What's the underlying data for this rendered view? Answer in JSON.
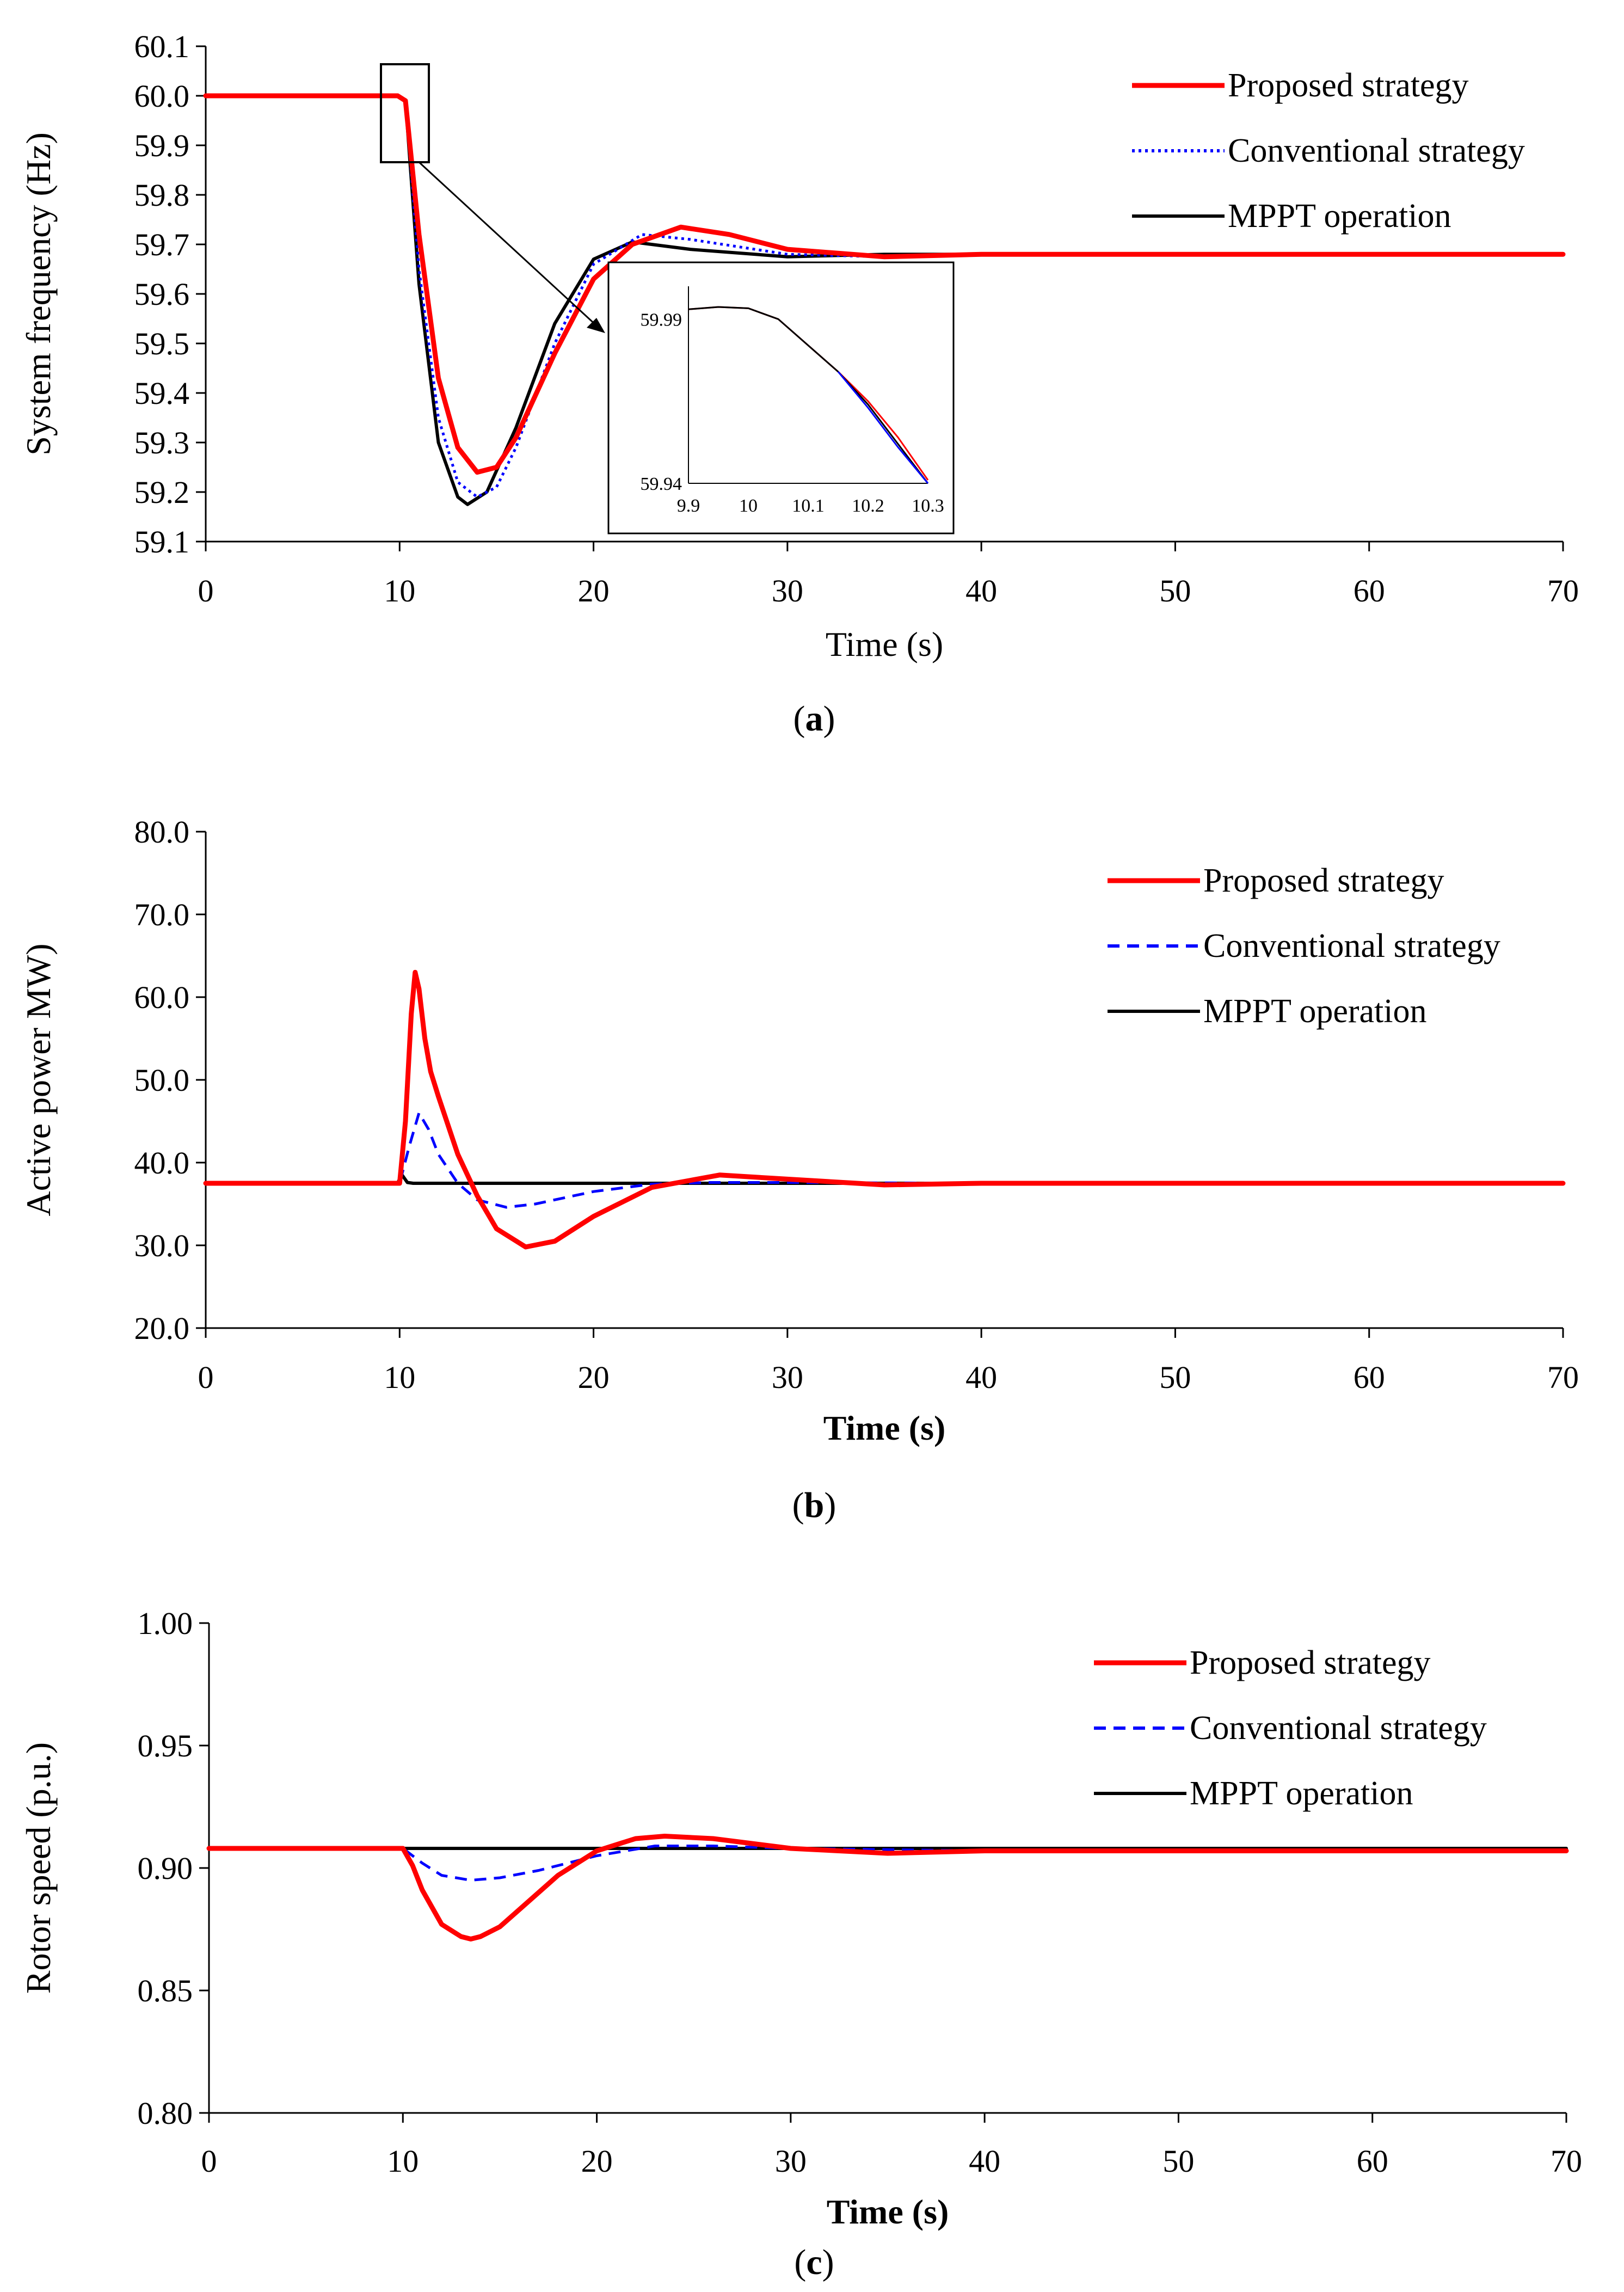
{
  "chart_data": [
    {
      "id": "a",
      "type": "line",
      "panel_label": "(a)",
      "panel_letter": "a",
      "xlabel": "Time (s)",
      "ylabel": "System frequency (Hz)",
      "xlim": [
        0,
        70
      ],
      "ylim": [
        59.1,
        60.1
      ],
      "xticks": [
        "0",
        "10",
        "20",
        "30",
        "40",
        "50",
        "60",
        "70"
      ],
      "yticks": [
        "59.1",
        "59.2",
        "59.3",
        "59.4",
        "59.5",
        "59.6",
        "59.7",
        "59.8",
        "59.9",
        "60.0",
        "60.1"
      ],
      "legend_position": "top-right",
      "series": [
        {
          "name": "Proposed strategy",
          "color": "#ff0000",
          "style": "solid",
          "x": [
            0,
            9.9,
            10.3,
            11,
            12,
            13,
            14,
            15,
            16,
            18,
            20,
            22,
            24.5,
            27,
            30,
            35,
            40,
            70
          ],
          "y": [
            60.0,
            60.0,
            59.99,
            59.72,
            59.43,
            59.29,
            59.24,
            59.25,
            59.31,
            59.48,
            59.63,
            59.7,
            59.735,
            59.72,
            59.69,
            59.675,
            59.68,
            59.68
          ]
        },
        {
          "name": "Conventional strategy",
          "color": "#0000ff",
          "style": "dotted",
          "x": [
            0,
            9.9,
            10.3,
            11,
            12,
            13,
            14,
            15,
            16,
            18,
            20,
            22.5,
            25,
            30,
            35,
            40,
            70
          ],
          "y": [
            60.0,
            60.0,
            59.99,
            59.65,
            59.35,
            59.22,
            59.19,
            59.21,
            59.29,
            59.5,
            59.66,
            59.72,
            59.71,
            59.68,
            59.675,
            59.68,
            59.68
          ]
        },
        {
          "name": "MPPT operation",
          "color": "#000000",
          "style": "solid",
          "x": [
            0,
            9.9,
            10.3,
            11,
            12,
            13,
            13.5,
            14.5,
            16,
            18,
            20,
            22,
            25,
            30,
            35,
            40,
            70
          ],
          "y": [
            60.0,
            60.0,
            59.99,
            59.62,
            59.3,
            59.19,
            59.175,
            59.2,
            59.33,
            59.54,
            59.67,
            59.705,
            59.69,
            59.675,
            59.68,
            59.68,
            59.68
          ]
        }
      ],
      "inset": {
        "xlim": [
          9.9,
          10.3
        ],
        "ylim": [
          59.94,
          60.0
        ],
        "xticks": [
          "9.9",
          "10",
          "10.1",
          "10.2",
          "10.3"
        ],
        "yticks": [
          "59.94",
          "59.99"
        ],
        "series": [
          {
            "name": "Proposed strategy",
            "color": "#ff0000",
            "x": [
              9.9,
              9.95,
              10.0,
              10.05,
              10.1,
              10.15,
              10.2,
              10.25,
              10.3
            ],
            "y": [
              59.993,
              59.9937,
              59.9933,
              59.99,
              59.982,
              59.974,
              59.965,
              59.954,
              59.941
            ]
          },
          {
            "name": "MPPT operation",
            "color": "#000000",
            "x": [
              9.9,
              9.95,
              10.0,
              10.05,
              10.1,
              10.15,
              10.2,
              10.25,
              10.3
            ],
            "y": [
              59.993,
              59.9937,
              59.9933,
              59.99,
              59.982,
              59.974,
              59.964,
              59.952,
              59.94
            ]
          },
          {
            "name": "Conventional strategy",
            "color": "#0000ff",
            "x": [
              10.15,
              10.2,
              10.25,
              10.3
            ],
            "y": [
              59.974,
              59.963,
              59.951,
              59.94
            ]
          }
        ]
      }
    },
    {
      "id": "b",
      "type": "line",
      "panel_label": "(b)",
      "panel_letter": "b",
      "xlabel": "Time (s)",
      "ylabel": "Active power MW)",
      "xlim": [
        0,
        70
      ],
      "ylim": [
        20.0,
        80.0
      ],
      "xticks": [
        "0",
        "10",
        "20",
        "30",
        "40",
        "50",
        "60",
        "70"
      ],
      "yticks": [
        "20.0",
        "30.0",
        "40.0",
        "50.0",
        "60.0",
        "70.0",
        "80.0"
      ],
      "legend_position": "top-right",
      "series": [
        {
          "name": "Proposed strategy",
          "color": "#ff0000",
          "style": "solid",
          "x": [
            0,
            10,
            10.3,
            10.6,
            10.8,
            11.0,
            11.3,
            11.6,
            12,
            13,
            14,
            15,
            16.5,
            18,
            20,
            23,
            26.5,
            30,
            35,
            40,
            70
          ],
          "y": [
            37.5,
            37.5,
            45,
            58,
            63,
            61,
            55,
            51,
            48,
            41,
            36,
            32,
            29.8,
            30.5,
            33.5,
            37,
            38.5,
            38,
            37.3,
            37.5,
            37.5
          ]
        },
        {
          "name": "Conventional strategy",
          "color": "#0000ff",
          "style": "dashed",
          "x": [
            0,
            10,
            10.5,
            11,
            11.5,
            12,
            13,
            14,
            15.5,
            17,
            20,
            23,
            26,
            30,
            40,
            70
          ],
          "y": [
            37.5,
            37.5,
            42,
            46,
            44,
            41,
            37.5,
            35.5,
            34.6,
            35,
            36.5,
            37.4,
            37.6,
            37.6,
            37.5,
            37.5
          ]
        },
        {
          "name": "MPPT operation",
          "color": "#000000",
          "style": "solid",
          "x": [
            0,
            9.9,
            10.1,
            10.4,
            10.7,
            70
          ],
          "y": [
            37.5,
            37.5,
            38.6,
            37.6,
            37.5,
            37.5
          ]
        }
      ]
    },
    {
      "id": "c",
      "type": "line",
      "panel_label": "(c)",
      "panel_letter": "c",
      "xlabel": "Time (s)",
      "ylabel": "Rotor speed (p.u.)",
      "xlim": [
        0,
        70
      ],
      "ylim": [
        0.8,
        1.0
      ],
      "xticks": [
        "0",
        "10",
        "20",
        "30",
        "40",
        "50",
        "60",
        "70"
      ],
      "yticks": [
        "0.80",
        "0.85",
        "0.90",
        "0.95",
        "1.00"
      ],
      "legend_position": "top-right",
      "series": [
        {
          "name": "Proposed strategy",
          "color": "#ff0000",
          "style": "solid",
          "x": [
            0,
            10,
            10.5,
            11,
            12,
            13,
            13.5,
            14,
            15,
            16,
            18,
            20,
            22,
            23.5,
            26,
            30,
            35,
            40,
            70
          ],
          "y": [
            0.908,
            0.908,
            0.901,
            0.891,
            0.877,
            0.872,
            0.871,
            0.872,
            0.876,
            0.883,
            0.897,
            0.907,
            0.912,
            0.913,
            0.912,
            0.908,
            0.906,
            0.907,
            0.907
          ]
        },
        {
          "name": "Conventional strategy",
          "color": "#0000ff",
          "style": "dashed",
          "x": [
            0,
            10,
            11,
            12,
            13.5,
            15,
            17,
            20,
            23,
            26,
            30,
            40,
            70
          ],
          "y": [
            0.908,
            0.908,
            0.902,
            0.897,
            0.895,
            0.896,
            0.899,
            0.905,
            0.909,
            0.909,
            0.908,
            0.907,
            0.907
          ]
        },
        {
          "name": "MPPT operation",
          "color": "#000000",
          "style": "solid",
          "x": [
            0,
            70
          ],
          "y": [
            0.908,
            0.908
          ]
        }
      ]
    }
  ]
}
